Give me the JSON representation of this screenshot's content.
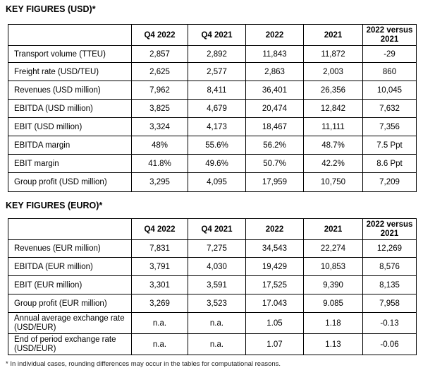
{
  "usd": {
    "title": "KEY FIGURES (USD)*",
    "headers": [
      "",
      "Q4 2022",
      "Q4 2021",
      "2022",
      "2021",
      "2022 versus 2021"
    ],
    "rows": [
      [
        "Transport volume (TTEU)",
        "2,857",
        "2,892",
        "11,843",
        "11,872",
        "-29"
      ],
      [
        "Freight rate (USD/TEU)",
        "2,625",
        "2,577",
        "2,863",
        "2,003",
        "860"
      ],
      [
        "Revenues (USD million)",
        "7,962",
        "8,411",
        "36,401",
        "26,356",
        "10,045"
      ],
      [
        "EBITDA (USD million)",
        "3,825",
        "4,679",
        "20,474",
        "12,842",
        "7,632"
      ],
      [
        "EBIT (USD million)",
        "3,324",
        "4,173",
        "18,467",
        "11,111",
        "7,356"
      ],
      [
        "EBITDA margin",
        "48%",
        "55.6%",
        "56.2%",
        "48.7%",
        "7.5 Ppt"
      ],
      [
        "EBIT margin",
        "41.8%",
        "49.6%",
        "50.7%",
        "42.2%",
        "8.6 Ppt"
      ],
      [
        "Group profit (USD million)",
        "3,295",
        "4,095",
        "17,959",
        "10,750",
        "7,209"
      ]
    ]
  },
  "eur": {
    "title": "KEY FIGURES (EURO)*",
    "headers": [
      "",
      "Q4 2022",
      "Q4 2021",
      "2022",
      "2021",
      "2022 versus 2021"
    ],
    "rows": [
      [
        "Revenues (EUR million)",
        "7,831",
        "7,275",
        "34,543",
        "22,274",
        "12,269"
      ],
      [
        "EBITDA (EUR million)",
        "3,791",
        "4,030",
        "19,429",
        "10,853",
        "8,576"
      ],
      [
        "EBIT (EUR million)",
        "3,301",
        "3,591",
        "17,525",
        "9,390",
        "8,135"
      ],
      [
        "Group profit (EUR million)",
        "3,269",
        "3,523",
        "17.043",
        "9.085",
        "7,958"
      ],
      [
        "Annual average exchange rate (USD/EUR)",
        "n.a.",
        "n.a.",
        "1.05",
        "1.18",
        "-0.13"
      ],
      [
        "End of period exchange rate (USD/EUR)",
        "n.a.",
        "n.a.",
        "1.07",
        "1.13",
        "-0.06"
      ]
    ]
  },
  "footnote": "* In individual cases, rounding differences may occur in the tables for computational reasons."
}
